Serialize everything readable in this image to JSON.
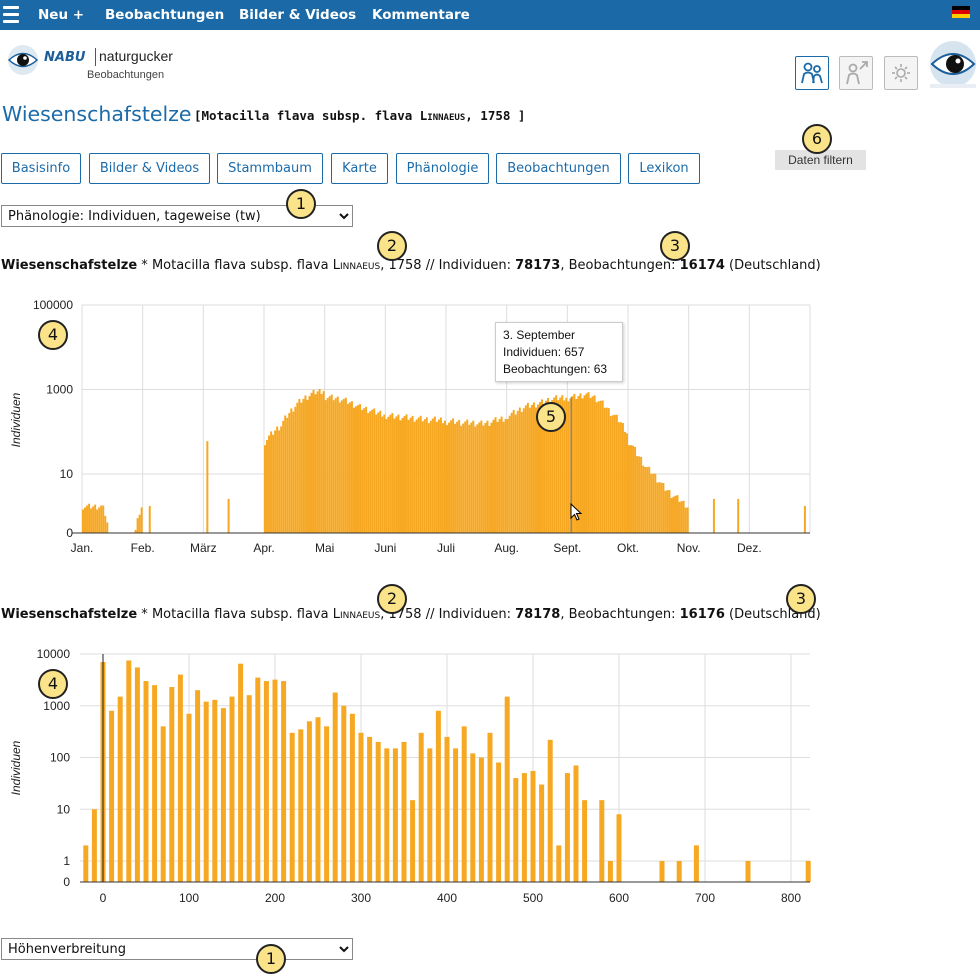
{
  "nav": {
    "menu_icon": "hamburger-icon",
    "items": [
      "Neu +",
      "Beobachtungen",
      "Bilder & Videos",
      "Kommentare"
    ],
    "flag": "german-flag-icon"
  },
  "header": {
    "logo_brand": "NABU",
    "logo_name": "naturgucker",
    "logo_sub": "Beobachtungen",
    "icon_buttons": [
      "people-icon",
      "person-share-icon",
      "settings-sun-icon"
    ],
    "globe_icon": "eye-globe-logo-icon"
  },
  "species": {
    "common": "Wiesenschafstelze",
    "scientific_bracket": "[Motacilla flava subsp. flava ",
    "author": "Linnaeus",
    "year_bracket": ", 1758 ]"
  },
  "tabs": [
    "Basisinfo",
    "Bilder & Videos",
    "Stammbaum",
    "Karte",
    "Phänologie",
    "Beobachtungen",
    "Lexikon"
  ],
  "filter_button": "Daten filtern",
  "select_top": {
    "value": "Phänologie: Individuen, tageweise (tw)"
  },
  "select_bottom": {
    "value": "Höhenverbreitung"
  },
  "badges": {
    "b1": "1",
    "b2": "2",
    "b3": "3",
    "b4": "4",
    "b5": "5",
    "b6": "6"
  },
  "chart1_header": {
    "name": "Wiesenschafstelze",
    "star": " * ",
    "sci": "Motacilla flava subsp. flava ",
    "author": "Linnaeus",
    "mid": ", 1758 // Individuen: ",
    "individuals": "78173",
    "obs_label": ", Beobachtungen: ",
    "observations": "16174",
    "region": " (Deutschland)"
  },
  "chart2_header": {
    "name": "Wiesenschafstelze",
    "star": " * ",
    "sci": "Motacilla flava subsp. flava ",
    "author": "Linnaeus",
    "mid": ", 1758 // Individuen: ",
    "individuals": "78178",
    "obs_label": ", Beobachtungen: ",
    "observations": "16176",
    "region": " (Deutschland)"
  },
  "tooltip": {
    "date": "3. September",
    "individuals": "Individuen: 657",
    "observations": "Beobachtungen: 63"
  },
  "chart_data": [
    {
      "type": "bar",
      "ylabel": "Individuen",
      "yscale": "log",
      "yticks": [
        "0",
        "10",
        "1000",
        "100000"
      ],
      "months": [
        "Jan.",
        "Feb.",
        "März",
        "Apr.",
        "Mai",
        "Juni",
        "Juli",
        "Aug.",
        "Sept.",
        "Okt.",
        "Nov.",
        "Dez."
      ],
      "color": "#f7a823",
      "series_by_month_start": {
        "Jan.": [
          2,
          2,
          2,
          2,
          0,
          0,
          0,
          0,
          0,
          2
        ],
        "Apr.": [
          60,
          100,
          150,
          300,
          500,
          700,
          900,
          1000
        ],
        "Mai": [
          700,
          650,
          600,
          500,
          400,
          350,
          300,
          280
        ],
        "Juni": [
          250,
          240,
          230,
          220,
          210,
          200,
          200,
          200
        ],
        "Juli": [
          180,
          180,
          170,
          170,
          160,
          170,
          200,
          220
        ],
        "Aug.": [
          250,
          300,
          400,
          450,
          500,
          600,
          650,
          700
        ],
        "Sept.": [
          657,
          700,
          800,
          700,
          500,
          300,
          200,
          100
        ],
        "Okt.": [
          60,
          30,
          15,
          10,
          6,
          4,
          3,
          2
        ]
      },
      "highlight": {
        "label": "3. September",
        "individuals": 657,
        "observations": 63
      }
    },
    {
      "type": "bar",
      "ylabel": "Individuen",
      "yscale": "log",
      "yticks": [
        "0",
        "1",
        "10",
        "100",
        "1000",
        "10000"
      ],
      "xticks": [
        "0",
        "100",
        "200",
        "300",
        "400",
        "500",
        "600",
        "700",
        "800"
      ],
      "color": "#f7a823",
      "x": [
        -20,
        -10,
        0,
        10,
        20,
        30,
        40,
        50,
        60,
        70,
        80,
        90,
        100,
        110,
        120,
        130,
        140,
        150,
        160,
        170,
        180,
        190,
        200,
        210,
        220,
        230,
        240,
        250,
        260,
        270,
        280,
        290,
        300,
        310,
        320,
        330,
        340,
        350,
        360,
        370,
        380,
        390,
        400,
        410,
        420,
        430,
        440,
        450,
        460,
        470,
        480,
        490,
        500,
        510,
        520,
        530,
        540,
        550,
        560,
        580,
        590,
        600,
        650,
        670,
        690,
        750,
        820
      ],
      "values": [
        2,
        10,
        7000,
        800,
        1500,
        7500,
        5500,
        3000,
        2500,
        400,
        2300,
        4000,
        700,
        2000,
        1200,
        1300,
        900,
        1500,
        6500,
        1600,
        3500,
        3000,
        3200,
        3000,
        300,
        350,
        500,
        600,
        400,
        1800,
        1000,
        700,
        300,
        250,
        200,
        150,
        150,
        200,
        15,
        300,
        150,
        800,
        250,
        150,
        400,
        120,
        100,
        300,
        80,
        1500,
        40,
        50,
        55,
        30,
        220,
        2,
        50,
        70,
        15,
        15,
        1,
        8,
        1,
        1,
        2,
        1,
        1
      ]
    }
  ]
}
